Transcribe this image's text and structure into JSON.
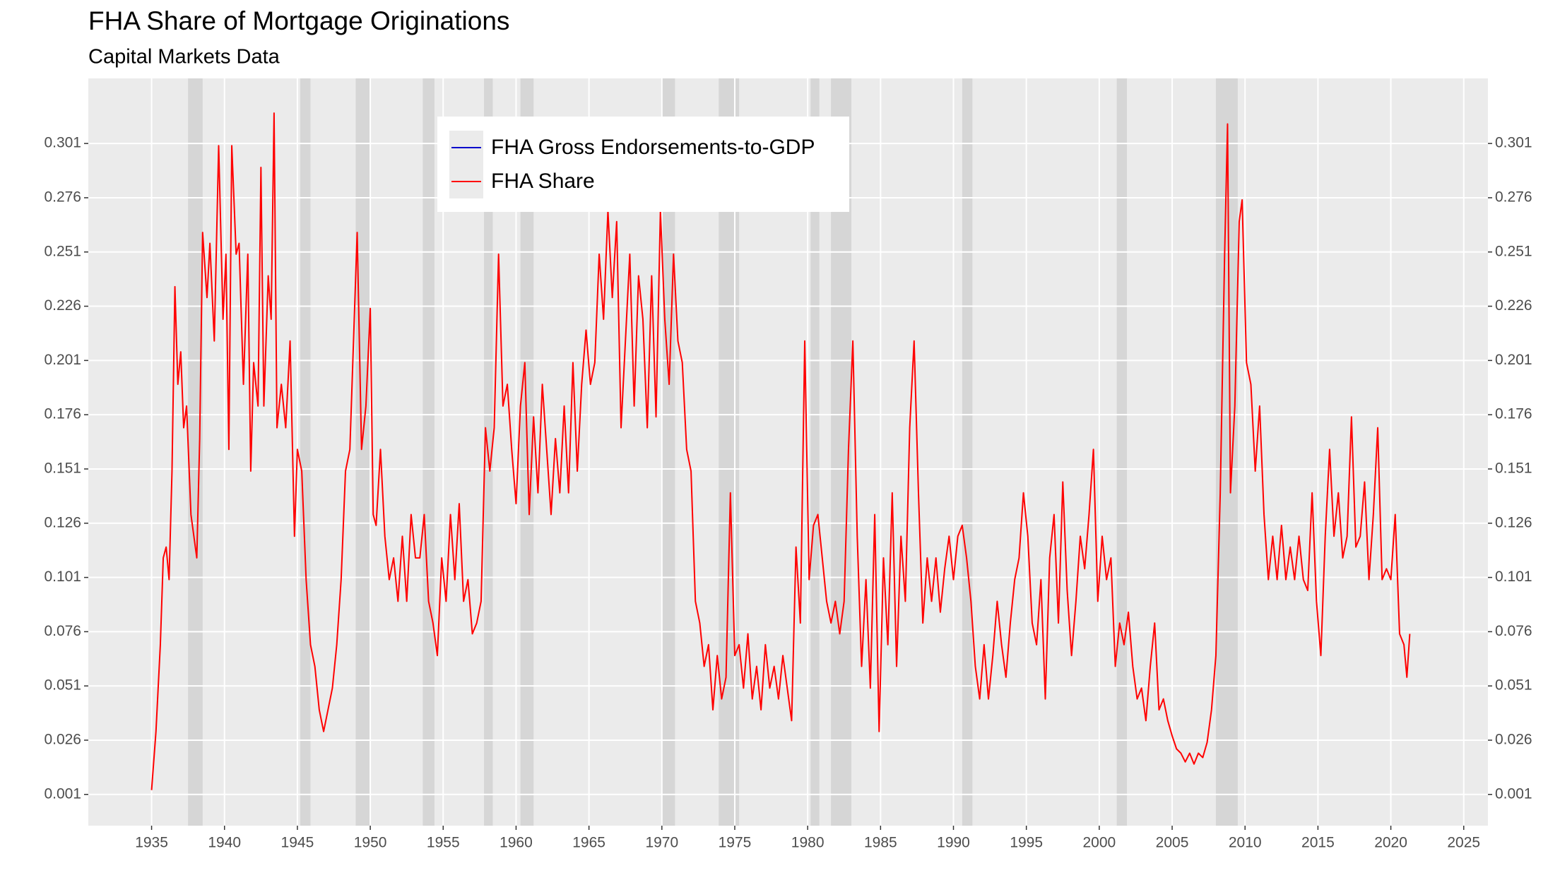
{
  "chart_data": {
    "type": "line",
    "title": "FHA Share of Mortgage Originations",
    "subtitle": "Capital Markets Data",
    "xlim": [
      1930.66,
      2026.66
    ],
    "xticks": [
      1935,
      1940,
      1945,
      1950,
      1955,
      1960,
      1965,
      1970,
      1975,
      1980,
      1985,
      1990,
      1995,
      2000,
      2005,
      2010,
      2015,
      2020,
      2025
    ],
    "ylim": [
      -0.0134,
      0.331
    ],
    "yticks": [
      0.001,
      0.026,
      0.051,
      0.076,
      0.101,
      0.126,
      0.151,
      0.176,
      0.201,
      0.226,
      0.251,
      0.276,
      0.301
    ],
    "grid": true,
    "legend": "top-center",
    "shaded_regions": [
      [
        1937.5,
        1938.5
      ],
      [
        1945.2,
        1945.9
      ],
      [
        1949.0,
        1950.0
      ],
      [
        1953.6,
        1954.4
      ],
      [
        1957.8,
        1958.4
      ],
      [
        1960.3,
        1961.2
      ],
      [
        1970.0,
        1970.9
      ],
      [
        1973.9,
        1975.3
      ],
      [
        1980.2,
        1980.8
      ],
      [
        1981.6,
        1983.0
      ],
      [
        1990.6,
        1991.3
      ],
      [
        2001.2,
        2001.9
      ],
      [
        2008.0,
        2009.5
      ]
    ],
    "series": [
      {
        "name": "FHA Gross Endorsements-to-GDP",
        "color": "#0000cc",
        "x": [],
        "values": []
      },
      {
        "name": "FHA Share",
        "color": "#ff0000",
        "x": [
          1935.0,
          1935.3,
          1935.6,
          1935.8,
          1936.0,
          1936.2,
          1936.4,
          1936.6,
          1936.8,
          1937.0,
          1937.2,
          1937.4,
          1937.7,
          1937.9,
          1938.1,
          1938.3,
          1938.5,
          1938.8,
          1939.0,
          1939.3,
          1939.6,
          1939.9,
          1940.1,
          1940.3,
          1940.5,
          1940.8,
          1941.0,
          1941.3,
          1941.6,
          1941.8,
          1942.0,
          1942.3,
          1942.5,
          1942.7,
          1943.0,
          1943.2,
          1943.4,
          1943.6,
          1943.9,
          1944.2,
          1944.5,
          1944.8,
          1945.0,
          1945.3,
          1945.6,
          1945.9,
          1946.2,
          1946.5,
          1946.8,
          1947.1,
          1947.4,
          1947.7,
          1948.0,
          1948.3,
          1948.6,
          1948.9,
          1949.1,
          1949.4,
          1949.7,
          1950.0,
          1950.2,
          1950.4,
          1950.7,
          1951.0,
          1951.3,
          1951.6,
          1951.9,
          1952.2,
          1952.5,
          1952.8,
          1953.1,
          1953.4,
          1953.7,
          1954.0,
          1954.3,
          1954.6,
          1954.9,
          1955.2,
          1955.5,
          1955.8,
          1956.1,
          1956.4,
          1956.7,
          1957.0,
          1957.3,
          1957.6,
          1957.9,
          1958.2,
          1958.5,
          1958.8,
          1959.1,
          1959.4,
          1959.7,
          1960.0,
          1960.3,
          1960.6,
          1960.9,
          1961.2,
          1961.5,
          1961.8,
          1962.1,
          1962.4,
          1962.7,
          1963.0,
          1963.3,
          1963.6,
          1963.9,
          1964.2,
          1964.5,
          1964.8,
          1965.1,
          1965.4,
          1965.7,
          1966.0,
          1966.3,
          1966.6,
          1966.9,
          1967.2,
          1967.5,
          1967.8,
          1968.1,
          1968.4,
          1968.7,
          1969.0,
          1969.3,
          1969.6,
          1969.9,
          1970.2,
          1970.5,
          1970.8,
          1971.1,
          1971.4,
          1971.7,
          1972.0,
          1972.3,
          1972.6,
          1972.9,
          1973.2,
          1973.5,
          1973.8,
          1974.1,
          1974.4,
          1974.7,
          1975.0,
          1975.3,
          1975.6,
          1975.9,
          1976.2,
          1976.5,
          1976.8,
          1977.1,
          1977.4,
          1977.7,
          1978.0,
          1978.3,
          1978.6,
          1978.9,
          1979.2,
          1979.5,
          1979.8,
          1980.1,
          1980.4,
          1980.7,
          1981.0,
          1981.3,
          1981.6,
          1981.9,
          1982.2,
          1982.5,
          1982.8,
          1983.1,
          1983.4,
          1983.7,
          1984.0,
          1984.3,
          1984.6,
          1984.9,
          1985.2,
          1985.5,
          1985.8,
          1986.1,
          1986.4,
          1986.7,
          1987.0,
          1987.3,
          1987.6,
          1987.9,
          1988.2,
          1988.5,
          1988.8,
          1989.1,
          1989.4,
          1989.7,
          1990.0,
          1990.3,
          1990.6,
          1990.9,
          1991.2,
          1991.5,
          1991.8,
          1992.1,
          1992.4,
          1992.7,
          1993.0,
          1993.3,
          1993.6,
          1993.9,
          1994.2,
          1994.5,
          1994.8,
          1995.1,
          1995.4,
          1995.7,
          1996.0,
          1996.3,
          1996.6,
          1996.9,
          1997.2,
          1997.5,
          1997.8,
          1998.1,
          1998.4,
          1998.7,
          1999.0,
          1999.3,
          1999.6,
          1999.9,
          2000.2,
          2000.5,
          2000.8,
          2001.1,
          2001.4,
          2001.7,
          2002.0,
          2002.3,
          2002.6,
          2002.9,
          2003.2,
          2003.5,
          2003.8,
          2004.1,
          2004.4,
          2004.7,
          2005.0,
          2005.3,
          2005.6,
          2005.9,
          2006.2,
          2006.5,
          2006.8,
          2007.1,
          2007.4,
          2007.7,
          2008.0,
          2008.3,
          2008.6,
          2008.8,
          2009.0,
          2009.3,
          2009.6,
          2009.8,
          2010.1,
          2010.4,
          2010.7,
          2011.0,
          2011.3,
          2011.6,
          2011.9,
          2012.2,
          2012.5,
          2012.8,
          2013.1,
          2013.4,
          2013.7,
          2014.0,
          2014.3,
          2014.6,
          2014.9,
          2015.2,
          2015.5,
          2015.8,
          2016.1,
          2016.4,
          2016.7,
          2017.0,
          2017.3,
          2017.6,
          2017.9,
          2018.2,
          2018.5,
          2018.8,
          2019.1,
          2019.4,
          2019.7,
          2020.0,
          2020.3,
          2020.6,
          2020.9,
          2021.1,
          2021.3
        ],
        "values": [
          0.003,
          0.03,
          0.07,
          0.11,
          0.115,
          0.1,
          0.15,
          0.235,
          0.19,
          0.205,
          0.17,
          0.18,
          0.13,
          0.12,
          0.11,
          0.165,
          0.26,
          0.23,
          0.255,
          0.21,
          0.3,
          0.22,
          0.25,
          0.16,
          0.3,
          0.25,
          0.255,
          0.19,
          0.25,
          0.15,
          0.2,
          0.18,
          0.29,
          0.18,
          0.24,
          0.22,
          0.315,
          0.17,
          0.19,
          0.17,
          0.21,
          0.12,
          0.16,
          0.15,
          0.1,
          0.07,
          0.06,
          0.04,
          0.03,
          0.04,
          0.05,
          0.07,
          0.1,
          0.15,
          0.16,
          0.22,
          0.26,
          0.16,
          0.18,
          0.225,
          0.13,
          0.125,
          0.16,
          0.12,
          0.1,
          0.11,
          0.09,
          0.12,
          0.09,
          0.13,
          0.11,
          0.11,
          0.13,
          0.09,
          0.08,
          0.065,
          0.11,
          0.09,
          0.13,
          0.1,
          0.135,
          0.09,
          0.1,
          0.075,
          0.08,
          0.09,
          0.17,
          0.15,
          0.17,
          0.25,
          0.18,
          0.19,
          0.16,
          0.135,
          0.18,
          0.2,
          0.13,
          0.175,
          0.14,
          0.19,
          0.16,
          0.13,
          0.165,
          0.14,
          0.18,
          0.14,
          0.2,
          0.15,
          0.19,
          0.215,
          0.19,
          0.2,
          0.25,
          0.22,
          0.27,
          0.23,
          0.265,
          0.17,
          0.21,
          0.25,
          0.18,
          0.24,
          0.22,
          0.17,
          0.24,
          0.175,
          0.27,
          0.22,
          0.19,
          0.25,
          0.21,
          0.2,
          0.16,
          0.15,
          0.09,
          0.08,
          0.06,
          0.07,
          0.04,
          0.065,
          0.045,
          0.055,
          0.14,
          0.065,
          0.07,
          0.05,
          0.075,
          0.045,
          0.06,
          0.04,
          0.07,
          0.05,
          0.06,
          0.045,
          0.065,
          0.05,
          0.035,
          0.115,
          0.08,
          0.21,
          0.1,
          0.125,
          0.13,
          0.11,
          0.09,
          0.08,
          0.09,
          0.075,
          0.09,
          0.16,
          0.21,
          0.12,
          0.06,
          0.1,
          0.05,
          0.13,
          0.03,
          0.11,
          0.07,
          0.14,
          0.06,
          0.12,
          0.09,
          0.17,
          0.21,
          0.14,
          0.08,
          0.11,
          0.09,
          0.11,
          0.085,
          0.105,
          0.12,
          0.1,
          0.12,
          0.125,
          0.11,
          0.09,
          0.06,
          0.045,
          0.07,
          0.045,
          0.065,
          0.09,
          0.07,
          0.055,
          0.08,
          0.1,
          0.11,
          0.14,
          0.12,
          0.08,
          0.07,
          0.1,
          0.045,
          0.11,
          0.13,
          0.08,
          0.145,
          0.095,
          0.065,
          0.09,
          0.12,
          0.105,
          0.13,
          0.16,
          0.09,
          0.12,
          0.1,
          0.11,
          0.06,
          0.08,
          0.07,
          0.085,
          0.06,
          0.045,
          0.05,
          0.035,
          0.06,
          0.08,
          0.04,
          0.045,
          0.035,
          0.028,
          0.022,
          0.02,
          0.016,
          0.02,
          0.015,
          0.02,
          0.018,
          0.025,
          0.04,
          0.065,
          0.14,
          0.25,
          0.31,
          0.14,
          0.18,
          0.265,
          0.275,
          0.2,
          0.19,
          0.15,
          0.18,
          0.13,
          0.1,
          0.12,
          0.1,
          0.125,
          0.1,
          0.115,
          0.1,
          0.12,
          0.1,
          0.095,
          0.14,
          0.09,
          0.065,
          0.12,
          0.16,
          0.12,
          0.14,
          0.11,
          0.12,
          0.175,
          0.115,
          0.12,
          0.145,
          0.1,
          0.13,
          0.17,
          0.1,
          0.105,
          0.1,
          0.13,
          0.075,
          0.07,
          0.055,
          0.075
        ]
      }
    ]
  }
}
